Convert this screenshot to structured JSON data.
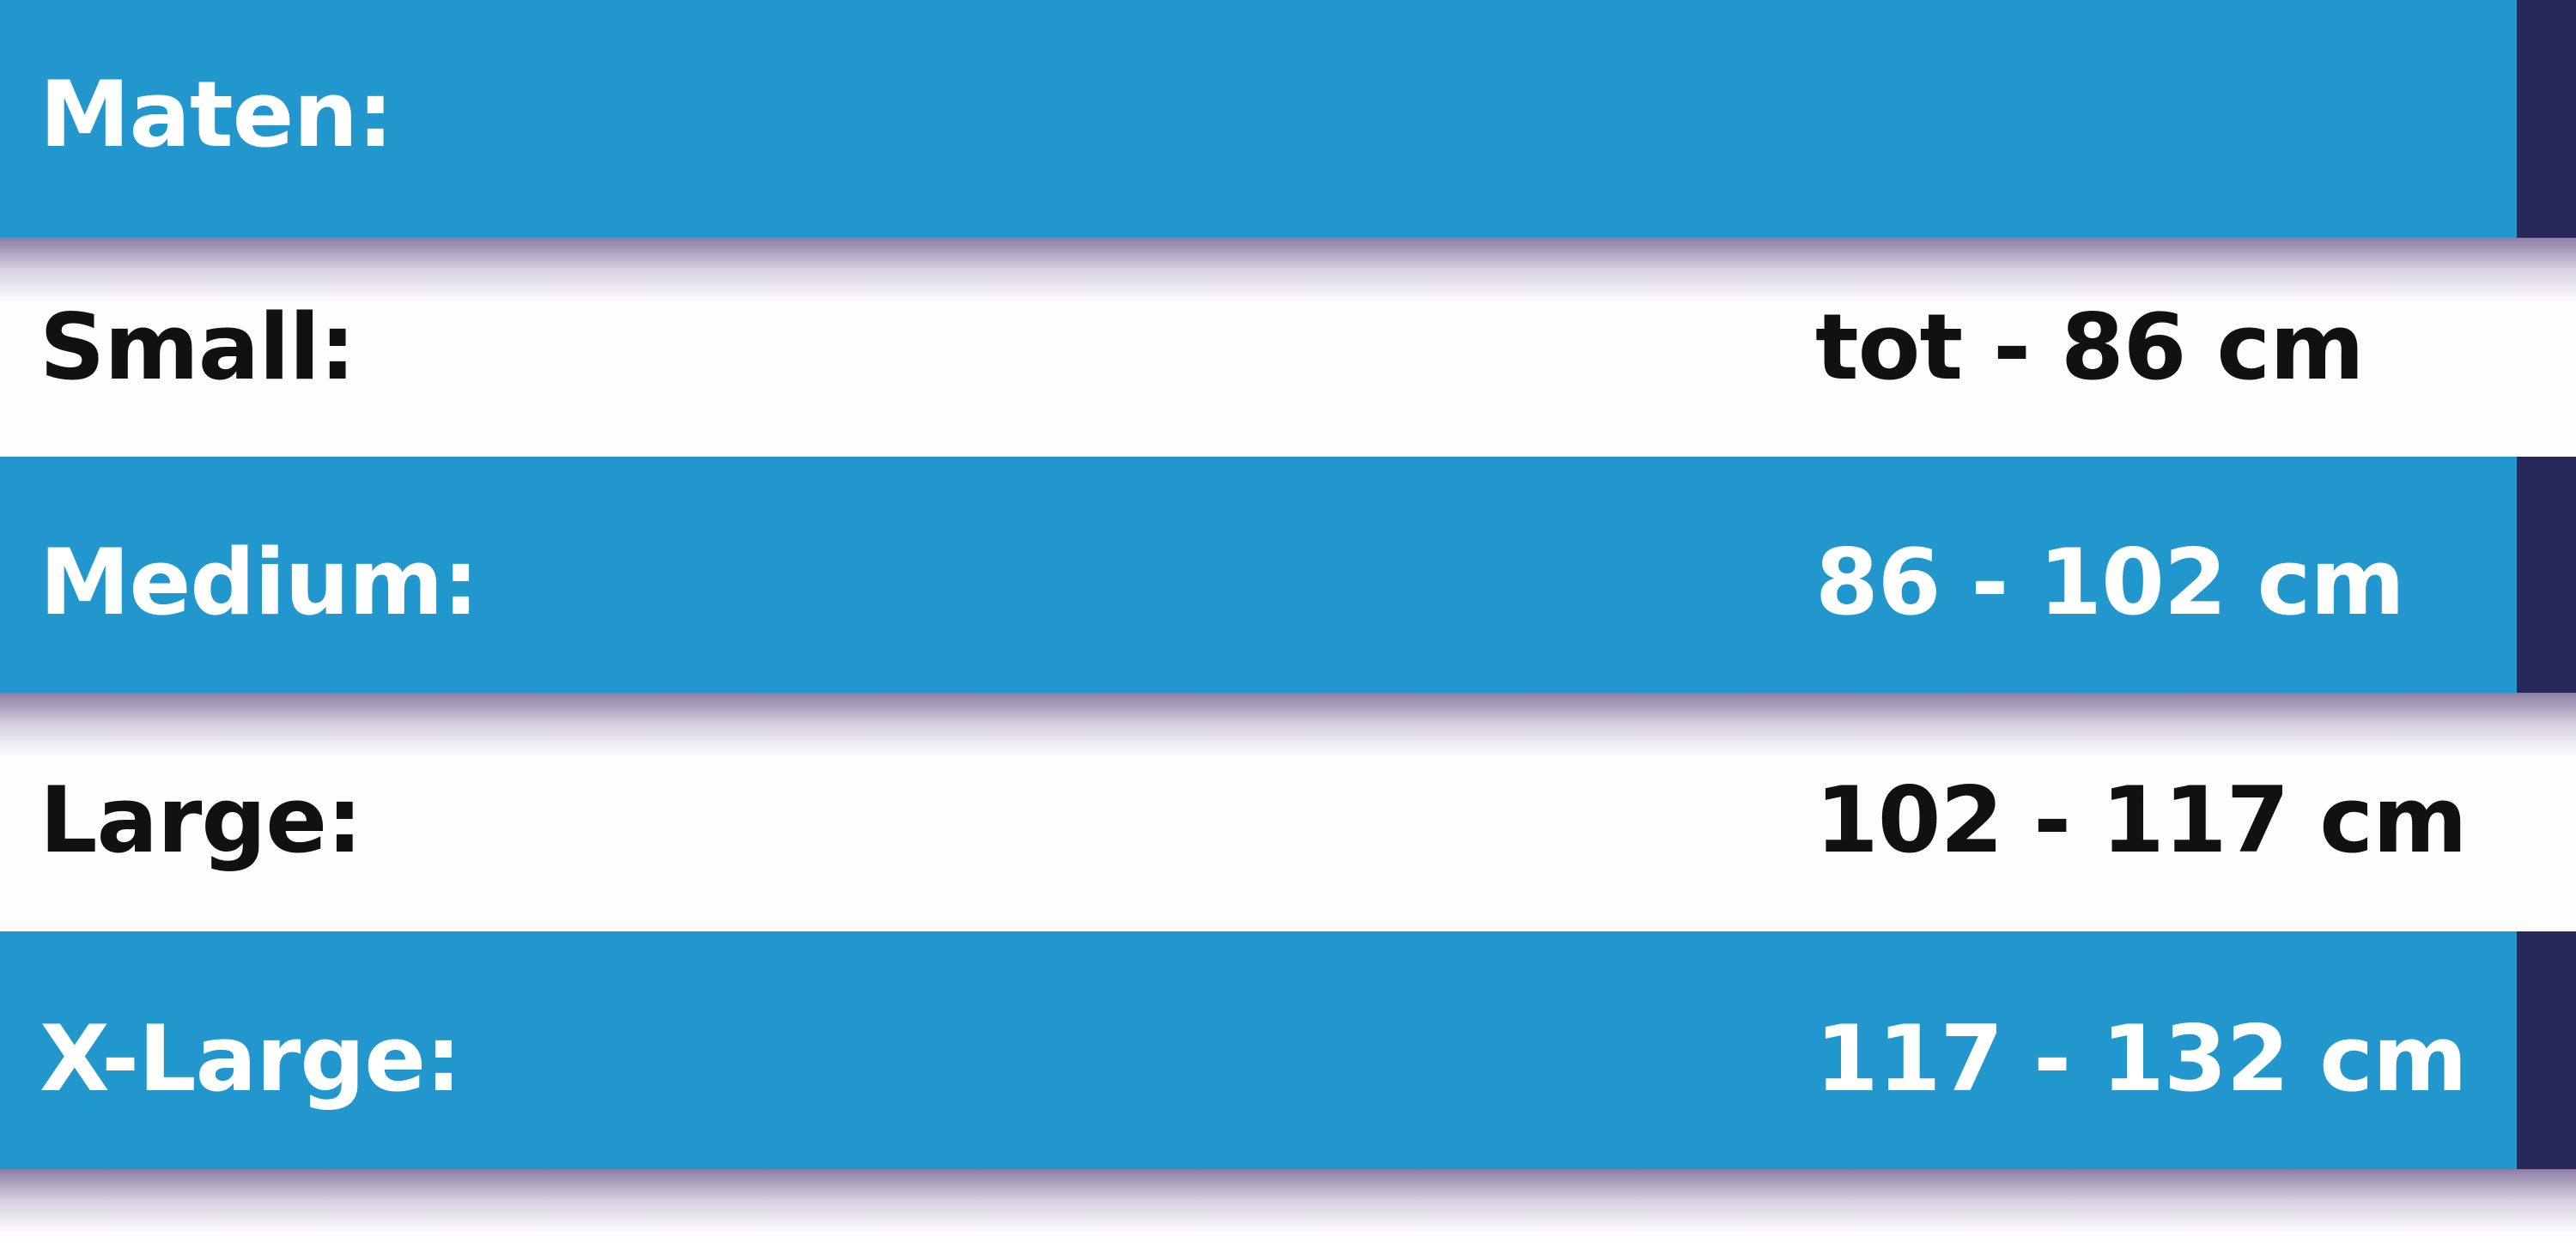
{
  "title": "Maten:",
  "sizes": [
    {
      "label": "Small:",
      "value": "tot - 86 cm"
    },
    {
      "label": "Medium:",
      "value": "86 - 102 cm"
    },
    {
      "label": "Large:",
      "value": "102 - 117 cm"
    },
    {
      "label": "X-Large:",
      "value": "117 - 132 cm"
    }
  ],
  "colors": {
    "band": "#2197cd",
    "accent": "#27275a",
    "background": "#fdfdfe"
  }
}
